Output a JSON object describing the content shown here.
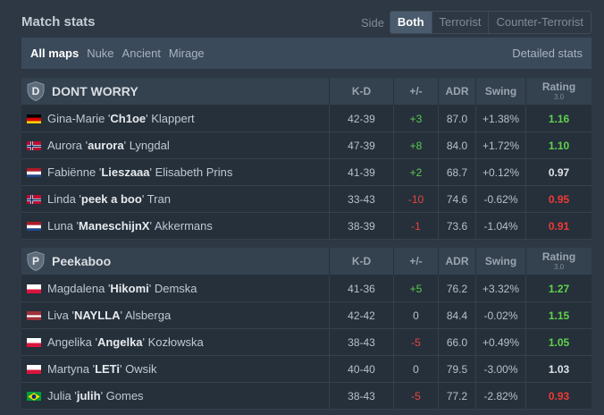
{
  "header": {
    "title": "Match stats",
    "side_label": "Side",
    "side_options": [
      "Both",
      "Terrorist",
      "Counter-Terrorist"
    ],
    "side_active": "Both"
  },
  "maps": {
    "items": [
      "All maps",
      "Nuke",
      "Ancient",
      "Mirage"
    ],
    "active": "All maps",
    "detailed_link": "Detailed stats"
  },
  "columns": {
    "kd": "K-D",
    "pm": "+/-",
    "adr": "ADR",
    "swing": "Swing",
    "rating": "Rating",
    "rating_version": "3.0"
  },
  "teams": [
    {
      "name": "DONT WORRY",
      "logo_letter": "D",
      "players": [
        {
          "first": "Gina-Marie '",
          "nick": "Ch1oe",
          "last": "' Klappert",
          "flag": "germany",
          "kd": "42-39",
          "pm": "+3",
          "pm_sign": "pos",
          "adr": "87.0",
          "swing": "+1.38%",
          "rating": "1.16",
          "rating_class": "good"
        },
        {
          "first": "Aurora '",
          "nick": "aurora",
          "last": "' Lyngdal",
          "flag": "norway",
          "kd": "47-39",
          "pm": "+8",
          "pm_sign": "pos",
          "adr": "84.0",
          "swing": "+1.72%",
          "rating": "1.10",
          "rating_class": "good"
        },
        {
          "first": "Fabiënne '",
          "nick": "Lieszaaa",
          "last": "' Elisabeth Prins",
          "flag": "netherlands",
          "kd": "41-39",
          "pm": "+2",
          "pm_sign": "pos",
          "adr": "68.7",
          "swing": "+0.12%",
          "rating": "0.97",
          "rating_class": "neu"
        },
        {
          "first": "Linda '",
          "nick": "peek a boo",
          "last": "' Tran",
          "flag": "norway",
          "kd": "33-43",
          "pm": "-10",
          "pm_sign": "neg",
          "adr": "74.6",
          "swing": "-0.62%",
          "rating": "0.95",
          "rating_class": "bad"
        },
        {
          "first": "Luna '",
          "nick": "ManeschijnX",
          "last": "' Akkermans",
          "flag": "netherlands",
          "kd": "38-39",
          "pm": "-1",
          "pm_sign": "neg",
          "adr": "73.6",
          "swing": "-1.04%",
          "rating": "0.91",
          "rating_class": "bad"
        }
      ]
    },
    {
      "name": "Peekaboo",
      "logo_letter": "P",
      "players": [
        {
          "first": "Magdalena '",
          "nick": "Hikomi",
          "last": "' Demska",
          "flag": "poland",
          "kd": "41-36",
          "pm": "+5",
          "pm_sign": "pos",
          "adr": "76.2",
          "swing": "+3.32%",
          "rating": "1.27",
          "rating_class": "good"
        },
        {
          "first": "Liva '",
          "nick": "NAYLLA",
          "last": "' Alsberga",
          "flag": "latvia",
          "kd": "42-42",
          "pm": "0",
          "pm_sign": "neu",
          "adr": "84.4",
          "swing": "-0.02%",
          "rating": "1.15",
          "rating_class": "good"
        },
        {
          "first": "Angelika '",
          "nick": "Angelka",
          "last": "' Kozłowska",
          "flag": "poland",
          "kd": "38-43",
          "pm": "-5",
          "pm_sign": "neg",
          "adr": "66.0",
          "swing": "+0.49%",
          "rating": "1.05",
          "rating_class": "good"
        },
        {
          "first": "Martyna '",
          "nick": "LETi",
          "last": "' Owsik",
          "flag": "poland",
          "kd": "40-40",
          "pm": "0",
          "pm_sign": "neu",
          "adr": "79.5",
          "swing": "-3.00%",
          "rating": "1.03",
          "rating_class": "neu"
        },
        {
          "first": "Julia '",
          "nick": "julih",
          "last": "' Gomes",
          "flag": "brazil",
          "kd": "38-43",
          "pm": "-5",
          "pm_sign": "neg",
          "adr": "77.2",
          "swing": "-2.82%",
          "rating": "0.93",
          "rating_class": "bad"
        }
      ]
    }
  ]
}
